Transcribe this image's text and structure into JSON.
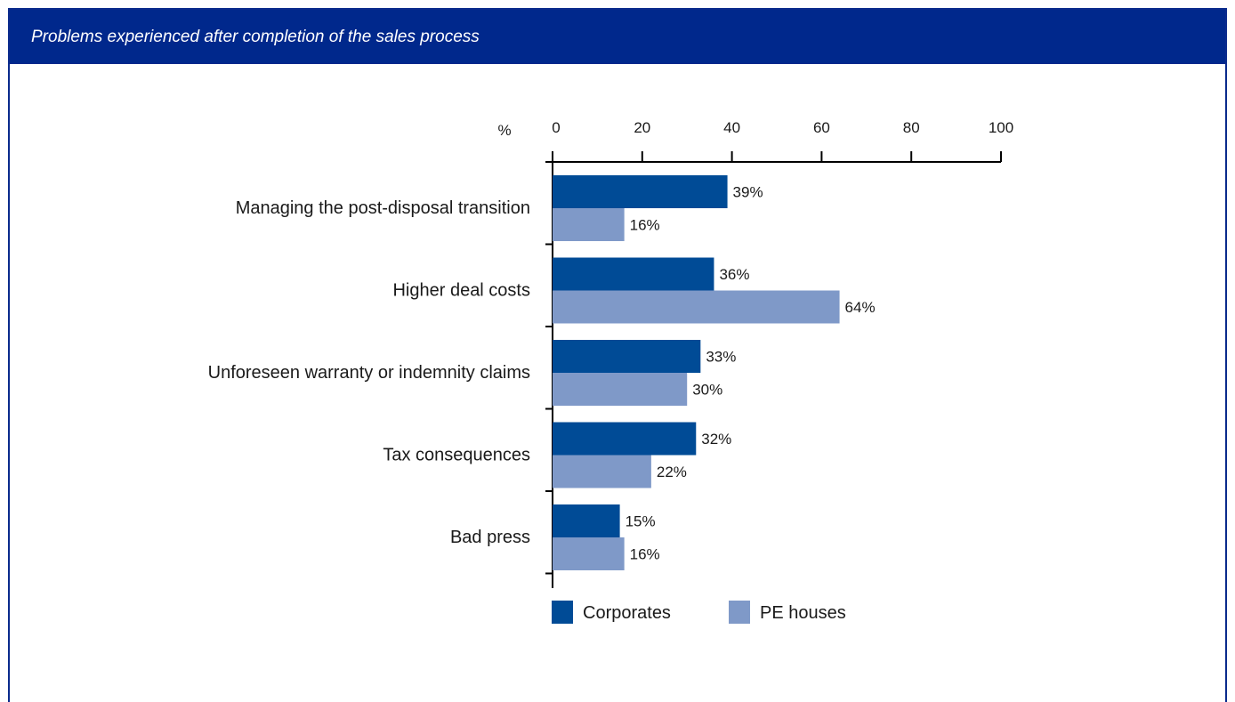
{
  "title": "Problems experienced after completion of the sales process",
  "chart_data": {
    "type": "bar",
    "orientation": "horizontal",
    "title": "Problems experienced after completion of the sales process",
    "axis_unit_label": "%",
    "xlim": [
      0,
      100
    ],
    "x_ticks": [
      "0",
      "20",
      "40",
      "60",
      "80",
      "100"
    ],
    "categories": [
      "Managing the post-disposal transition",
      "Higher deal costs",
      "Unforeseen warranty or indemnity claims",
      "Tax consequences",
      "Bad press"
    ],
    "series": [
      {
        "name": "Corporates",
        "color": "#004b96",
        "values": [
          39,
          36,
          33,
          32,
          15
        ],
        "labels": [
          "39%",
          "36%",
          "33%",
          "32%",
          "15%"
        ]
      },
      {
        "name": "PE houses",
        "color": "#7f99c8",
        "values": [
          16,
          64,
          30,
          22,
          16
        ],
        "labels": [
          "16%",
          "64%",
          "30%",
          "22%",
          "16%"
        ]
      }
    ],
    "legend_position": "bottom",
    "grid": false
  }
}
